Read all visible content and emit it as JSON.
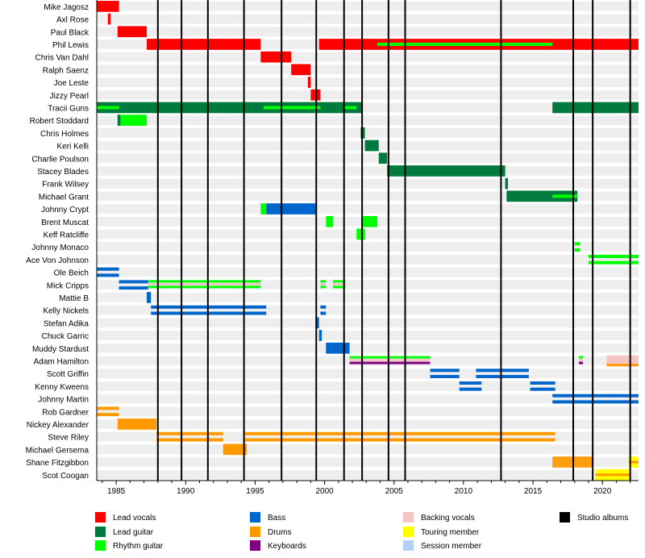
{
  "chart_data": {
    "type": "timeline",
    "title": "",
    "xlim": [
      1983.6,
      2022.6
    ],
    "x_ticks": [
      1985,
      1990,
      1995,
      2000,
      2005,
      2010,
      2015,
      2020
    ],
    "colors": {
      "lead_vocals": "#ff0000",
      "lead_guitar": "#007a3d",
      "rhythm_guitar": "#00ff00",
      "bass": "#0066cc",
      "drums": "#ff9900",
      "keyboards": "#800080",
      "backing_vocals": "#f5c5c5",
      "touring_member": "#ffff00",
      "session_member": "#b5d0f5",
      "studio_albums": "#000000",
      "row_stripe": "#eeeeee"
    },
    "members": [
      {
        "name": "Mike Jagosz",
        "bars": [
          {
            "role": "lead_vocals",
            "start": 1983.6,
            "end": 1985.2
          }
        ]
      },
      {
        "name": "Axl Rose",
        "bars": [
          {
            "role": "lead_vocals",
            "start": 1984.4,
            "end": 1984.6
          }
        ]
      },
      {
        "name": "Paul Black",
        "bars": [
          {
            "role": "lead_vocals",
            "start": 1985.1,
            "end": 1987.2
          }
        ]
      },
      {
        "name": "Phil Lewis",
        "bars": [
          {
            "role": "lead_vocals",
            "start": 1987.2,
            "end": 1995.4
          },
          {
            "role": "lead_vocals",
            "start": 1999.6,
            "end": 2022.6
          },
          {
            "role": "rhythm_guitar",
            "start": 2003.8,
            "end": 2016.4,
            "style": "stripe"
          }
        ]
      },
      {
        "name": "Chris Van Dahl",
        "bars": [
          {
            "role": "lead_vocals",
            "start": 1995.4,
            "end": 1997.6
          }
        ]
      },
      {
        "name": "Ralph Saenz",
        "bars": [
          {
            "role": "lead_vocals",
            "start": 1997.6,
            "end": 1999.0
          }
        ]
      },
      {
        "name": "Joe Leste",
        "bars": [
          {
            "role": "lead_vocals",
            "start": 1998.8,
            "end": 1999.0
          }
        ]
      },
      {
        "name": "Jizzy Pearl",
        "bars": [
          {
            "role": "lead_vocals",
            "start": 1999.0,
            "end": 1999.7
          }
        ]
      },
      {
        "name": "Tracii Guns",
        "bars": [
          {
            "role": "lead_guitar",
            "start": 1983.6,
            "end": 2002.7
          },
          {
            "role": "rhythm_guitar",
            "start": 1983.6,
            "end": 1985.2,
            "style": "stripe"
          },
          {
            "role": "rhythm_guitar",
            "start": 1995.6,
            "end": 1999.7,
            "style": "stripe"
          },
          {
            "role": "rhythm_guitar",
            "start": 2001.4,
            "end": 2002.3,
            "style": "stripe"
          },
          {
            "role": "lead_guitar",
            "start": 2016.4,
            "end": 2022.6
          }
        ]
      },
      {
        "name": "Robert Stoddard",
        "bars": [
          {
            "role": "rhythm_guitar",
            "start": 1985.1,
            "end": 1987.2
          },
          {
            "role": "lead_guitar",
            "start": 1985.1,
            "end": 1985.3,
            "style": "edge"
          }
        ]
      },
      {
        "name": "Chris Holmes",
        "bars": [
          {
            "role": "lead_guitar",
            "start": 2002.6,
            "end": 2002.9
          }
        ]
      },
      {
        "name": "Keri Kelli",
        "bars": [
          {
            "role": "lead_guitar",
            "start": 2002.9,
            "end": 2003.9
          }
        ]
      },
      {
        "name": "Charlie Poulson",
        "bars": [
          {
            "role": "lead_guitar",
            "start": 2003.9,
            "end": 2004.5
          }
        ]
      },
      {
        "name": "Stacey Blades",
        "bars": [
          {
            "role": "lead_guitar",
            "start": 2004.5,
            "end": 2013.0
          }
        ]
      },
      {
        "name": "Frank Wilsey",
        "bars": [
          {
            "role": "lead_guitar",
            "start": 2013.0,
            "end": 2013.2
          }
        ]
      },
      {
        "name": "Michael Grant",
        "bars": [
          {
            "role": "lead_guitar",
            "start": 2013.1,
            "end": 2018.2
          },
          {
            "role": "rhythm_guitar",
            "start": 2016.4,
            "end": 2018.2,
            "style": "stripe"
          }
        ]
      },
      {
        "name": "Johnny Crypt",
        "bars": [
          {
            "role": "bass",
            "start": 1995.8,
            "end": 1999.4
          },
          {
            "role": "rhythm_guitar",
            "start": 1995.4,
            "end": 1995.8
          }
        ]
      },
      {
        "name": "Brent Muscat",
        "bars": [
          {
            "role": "rhythm_guitar",
            "start": 2000.1,
            "end": 2000.6
          },
          {
            "role": "rhythm_guitar",
            "start": 2002.7,
            "end": 2003.8
          }
        ]
      },
      {
        "name": "Keff Ratcliffe",
        "bars": [
          {
            "role": "rhythm_guitar",
            "start": 2002.3,
            "end": 2002.9
          }
        ]
      },
      {
        "name": "Johnny Monaco",
        "bars": [
          {
            "role": "rhythm_guitar",
            "start": 2018.0,
            "end": 2018.4,
            "style": "split"
          }
        ]
      },
      {
        "name": "Ace Von Johnson",
        "bars": [
          {
            "role": "rhythm_guitar",
            "start": 2019.0,
            "end": 2022.6,
            "style": "split"
          }
        ]
      },
      {
        "name": "Ole Beich",
        "bars": [
          {
            "role": "bass",
            "start": 1983.6,
            "end": 1985.2,
            "style": "split"
          }
        ]
      },
      {
        "name": "Mick Cripps",
        "bars": [
          {
            "role": "bass",
            "start": 1985.2,
            "end": 1987.3,
            "style": "split"
          },
          {
            "role": "rhythm_guitar",
            "start": 1987.3,
            "end": 1995.4,
            "style": "multi"
          },
          {
            "role": "rhythm_guitar",
            "start": 1999.7,
            "end": 2000.1,
            "style": "multi"
          },
          {
            "role": "rhythm_guitar",
            "start": 2000.6,
            "end": 2001.5,
            "style": "multi"
          }
        ]
      },
      {
        "name": "Mattie B",
        "bars": [
          {
            "role": "bass",
            "start": 1987.2,
            "end": 1987.5
          }
        ]
      },
      {
        "name": "Kelly Nickels",
        "bars": [
          {
            "role": "bass",
            "start": 1987.5,
            "end": 1995.8,
            "style": "split"
          },
          {
            "role": "bass",
            "start": 1999.7,
            "end": 2000.1,
            "style": "split"
          }
        ]
      },
      {
        "name": "Stefan Adika",
        "bars": [
          {
            "role": "bass",
            "start": 1999.4,
            "end": 1999.6
          }
        ]
      },
      {
        "name": "Chuck Garric",
        "bars": [
          {
            "role": "bass",
            "start": 1999.6,
            "end": 1999.8
          }
        ]
      },
      {
        "name": "Muddy Stardust",
        "bars": [
          {
            "role": "bass",
            "start": 2000.1,
            "end": 2001.8
          }
        ]
      },
      {
        "name": "Adam Hamilton",
        "bars": [
          {
            "role": "keyboards",
            "start": 2001.8,
            "end": 2007.6,
            "style": "multi"
          },
          {
            "role": "keyboards",
            "start": 2018.3,
            "end": 2018.6,
            "style": "multi"
          },
          {
            "role": "backing_vocals",
            "start": 2020.3,
            "end": 2022.6,
            "style": "drums"
          }
        ]
      },
      {
        "name": "Scott Griffin",
        "bars": [
          {
            "role": "bass",
            "start": 2007.6,
            "end": 2009.7,
            "style": "split"
          },
          {
            "role": "bass",
            "start": 2010.9,
            "end": 2014.7,
            "style": "split"
          }
        ]
      },
      {
        "name": "Kenny Kweens",
        "bars": [
          {
            "role": "bass",
            "start": 2009.7,
            "end": 2011.3,
            "style": "split"
          },
          {
            "role": "bass",
            "start": 2014.8,
            "end": 2016.6,
            "style": "split"
          }
        ]
      },
      {
        "name": "Johnny Martin",
        "bars": [
          {
            "role": "bass",
            "start": 2016.4,
            "end": 2022.6,
            "style": "split"
          }
        ]
      },
      {
        "name": "Rob Gardner",
        "bars": [
          {
            "role": "drums",
            "start": 1983.6,
            "end": 1985.2,
            "style": "split"
          }
        ]
      },
      {
        "name": "Nickey Alexander",
        "bars": [
          {
            "role": "drums",
            "start": 1985.1,
            "end": 1987.9
          }
        ]
      },
      {
        "name": "Steve Riley",
        "bars": [
          {
            "role": "drums",
            "start": 1987.9,
            "end": 1992.7,
            "style": "split"
          },
          {
            "role": "drums",
            "start": 1994.2,
            "end": 2016.6,
            "style": "split"
          }
        ]
      },
      {
        "name": "Michael Gersema",
        "bars": [
          {
            "role": "drums",
            "start": 1992.7,
            "end": 1994.4
          }
        ]
      },
      {
        "name": "Shane Fitzgibbon",
        "bars": [
          {
            "role": "drums",
            "start": 2016.4,
            "end": 2019.3,
            "style": "fade"
          },
          {
            "role": "drums",
            "start": 2021.9,
            "end": 2022.6,
            "style": "touring"
          }
        ]
      },
      {
        "name": "Scot Coogan",
        "bars": [
          {
            "role": "touring_member",
            "start": 2019.5,
            "end": 2022.0,
            "style": "touring"
          }
        ]
      }
    ],
    "studio_albums": [
      1988.0,
      1989.7,
      1991.6,
      1994.2,
      1996.9,
      1999.4,
      2001.4,
      2002.7,
      2004.6,
      2005.8,
      2012.7,
      2017.9,
      2019.3,
      2022.0
    ],
    "legend": [
      {
        "key": "lead_vocals",
        "label": "Lead vocals"
      },
      {
        "key": "lead_guitar",
        "label": "Lead guitar"
      },
      {
        "key": "rhythm_guitar",
        "label": "Rhythm guitar"
      },
      {
        "key": "bass",
        "label": "Bass"
      },
      {
        "key": "drums",
        "label": "Drums"
      },
      {
        "key": "keyboards",
        "label": "Keyboards"
      },
      {
        "key": "backing_vocals",
        "label": "Backing vocals"
      },
      {
        "key": "touring_member",
        "label": "Touring member"
      },
      {
        "key": "session_member",
        "label": "Session member"
      },
      {
        "key": "studio_albums",
        "label": "Studio albums"
      }
    ]
  }
}
